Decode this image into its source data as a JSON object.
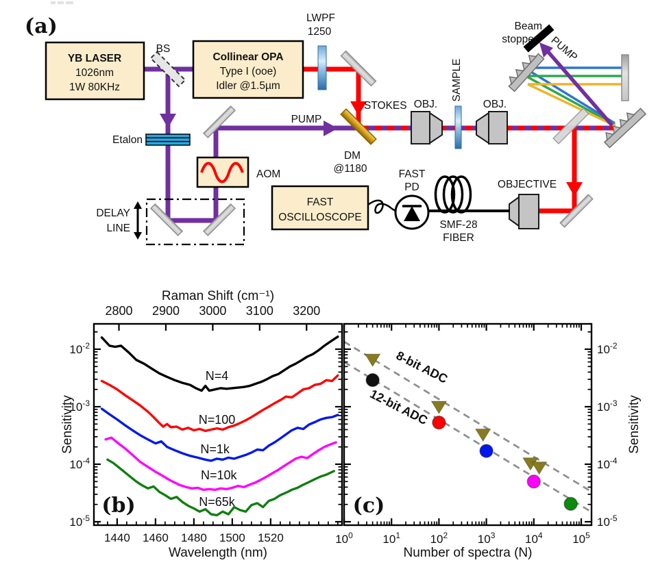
{
  "figure": {
    "panel_a": "(a)",
    "panel_b": "(b)",
    "panel_c": "(c)"
  },
  "diagram": {
    "labels": {
      "laser_l1": "YB LASER",
      "laser_l2": "1026nm",
      "laser_l3": "1W 80KHz",
      "bs": "BS",
      "opa_l1": "Collinear OPA",
      "opa_l2": "Type I (ooe)",
      "opa_l3": "Idler @1.5µm",
      "lwpf_l1": "LWPF",
      "lwpf_l2": "1250",
      "etalon": "Etalon",
      "aom": "AOM",
      "delay_l1": "DELAY",
      "delay_l2": "LINE",
      "pump_main": "PUMP",
      "stokes": "STOKES",
      "dm_l1": "DM",
      "dm_l2": "@1180",
      "obj_left": "OBJ.",
      "obj_right": "OBJ.",
      "sample": "SAMPLE",
      "beam_stopper_l1": "Beam",
      "beam_stopper_l2": "stopper",
      "pump_diag": "PUMP",
      "osc_l1": "FAST",
      "osc_l2": "OSCILLOSCOPE",
      "pd_l1": "FAST",
      "pd_l2": "PD",
      "fiber_l1": "SMF-28",
      "fiber_l2": "FIBER",
      "objective": "OBJECTIVE"
    },
    "colors": {
      "pump_beam": "#7030A0",
      "stokes_beam": "#FF0000",
      "box_fill": "#FBEDCB",
      "optic_gray": "#CFCFCF",
      "gold_dm": "#C89000",
      "blue_element": "#4A90C8",
      "beam_blue": "#2E75D4",
      "beam_green": "#2EA84E",
      "beam_yellow": "#F0B428"
    }
  },
  "chart_data": [
    {
      "type": "line",
      "panel": "b",
      "panel_label": "(b)",
      "xlabel": "Wavelength (nm)",
      "x2label": "Raman Shift (cm⁻¹)",
      "ylabel": "Sensitivity",
      "yscale": "log",
      "xlim": [
        1428,
        1557
      ],
      "x2lim": [
        2747,
        3276
      ],
      "ylim": [
        8.7e-06,
        0.0276
      ],
      "xticks": [
        1440,
        1460,
        1480,
        1500,
        1520
      ],
      "x2ticks": [
        2800,
        2900,
        3000,
        3100,
        3200
      ],
      "ytick_exponents": [
        -2,
        -3,
        -4,
        -5
      ],
      "grid": false,
      "series": [
        {
          "name": "N=4",
          "color": "#000000",
          "points": [
            [
              1432,
              0.016
            ],
            [
              1436,
              0.0115
            ],
            [
              1439,
              0.011
            ],
            [
              1442,
              0.0115
            ],
            [
              1446,
              0.0088
            ],
            [
              1450,
              0.0065
            ],
            [
              1454,
              0.0056
            ],
            [
              1458,
              0.0046
            ],
            [
              1462,
              0.0038
            ],
            [
              1466,
              0.0033
            ],
            [
              1470,
              0.0029
            ],
            [
              1474,
              0.0026
            ],
            [
              1478,
              0.0024
            ],
            [
              1481,
              0.0021
            ],
            [
              1484,
              0.0019
            ],
            [
              1486,
              0.0023
            ],
            [
              1488,
              0.0019
            ],
            [
              1491,
              0.002
            ],
            [
              1494,
              0.0021
            ],
            [
              1497,
              0.00205
            ],
            [
              1500,
              0.0021
            ],
            [
              1503,
              0.00215
            ],
            [
              1506,
              0.0022
            ],
            [
              1509,
              0.0023
            ],
            [
              1512,
              0.0025
            ],
            [
              1515,
              0.0027
            ],
            [
              1518,
              0.003
            ],
            [
              1521,
              0.0034
            ],
            [
              1524,
              0.0037
            ],
            [
              1527,
              0.0043
            ],
            [
              1530,
              0.005
            ],
            [
              1533,
              0.0056
            ],
            [
              1536,
              0.0064
            ],
            [
              1539,
              0.0074
            ],
            [
              1542,
              0.0082
            ],
            [
              1545,
              0.0096
            ],
            [
              1548,
              0.0115
            ],
            [
              1551,
              0.0135
            ],
            [
              1555,
              0.0165
            ]
          ]
        },
        {
          "name": "N=100",
          "color": "#FF0000",
          "points": [
            [
              1432,
              0.0028
            ],
            [
              1436,
              0.0024
            ],
            [
              1440,
              0.002
            ],
            [
              1444,
              0.0016
            ],
            [
              1448,
              0.0013
            ],
            [
              1452,
              0.00105
            ],
            [
              1456,
              0.00082
            ],
            [
              1459,
              0.00066
            ],
            [
              1462,
              0.00052
            ],
            [
              1464,
              0.00045
            ],
            [
              1466,
              0.0005
            ],
            [
              1468,
              0.00044
            ],
            [
              1471,
              0.00045
            ],
            [
              1474,
              0.0004
            ],
            [
              1477,
              0.00043
            ],
            [
              1480,
              0.00039
            ],
            [
              1483,
              0.00041
            ],
            [
              1486,
              0.00038
            ],
            [
              1489,
              0.0004
            ],
            [
              1492,
              0.00042
            ],
            [
              1495,
              0.0004
            ],
            [
              1498,
              0.00044
            ],
            [
              1501,
              0.00047
            ],
            [
              1504,
              0.00052
            ],
            [
              1507,
              0.00058
            ],
            [
              1510,
              0.00066
            ],
            [
              1513,
              0.00076
            ],
            [
              1516,
              0.00088
            ],
            [
              1519,
              0.001
            ],
            [
              1522,
              0.00115
            ],
            [
              1525,
              0.0013
            ],
            [
              1528,
              0.0015
            ],
            [
              1531,
              0.00145
            ],
            [
              1534,
              0.0017
            ],
            [
              1537,
              0.002
            ],
            [
              1540,
              0.0021
            ],
            [
              1543,
              0.0024
            ],
            [
              1546,
              0.0025
            ],
            [
              1549,
              0.0029
            ],
            [
              1552,
              0.0028
            ],
            [
              1555,
              0.0035
            ]
          ]
        },
        {
          "name": "N=1k",
          "color": "#0018EE",
          "points": [
            [
              1432,
              0.00092
            ],
            [
              1436,
              0.00074
            ],
            [
              1440,
              0.0006
            ],
            [
              1444,
              0.00048
            ],
            [
              1448,
              0.00039
            ],
            [
              1452,
              0.00032
            ],
            [
              1456,
              0.00027
            ],
            [
              1460,
              0.00023
            ],
            [
              1463,
              0.00025
            ],
            [
              1466,
              0.0002
            ],
            [
              1470,
              0.000175
            ],
            [
              1474,
              0.000155
            ],
            [
              1478,
              0.00014
            ],
            [
              1482,
              0.00013
            ],
            [
              1486,
              0.00012
            ],
            [
              1489,
              0.000115
            ],
            [
              1492,
              0.000125
            ],
            [
              1495,
              0.00012
            ],
            [
              1498,
              0.00013
            ],
            [
              1501,
              0.000125
            ],
            [
              1504,
              0.000135
            ],
            [
              1507,
              0.000145
            ],
            [
              1510,
              0.00016
            ],
            [
              1513,
              0.00018
            ],
            [
              1516,
              0.000175
            ],
            [
              1519,
              0.00021
            ],
            [
              1522,
              0.00024
            ],
            [
              1525,
              0.00028
            ],
            [
              1528,
              0.00033
            ],
            [
              1531,
              0.00039
            ],
            [
              1534,
              0.00043
            ],
            [
              1537,
              0.00041
            ],
            [
              1540,
              0.00049
            ],
            [
              1543,
              0.00054
            ],
            [
              1546,
              0.0006
            ],
            [
              1549,
              0.00064
            ],
            [
              1552,
              0.00066
            ],
            [
              1555,
              0.00072
            ]
          ]
        },
        {
          "name": "N=10k",
          "color": "#FF00FF",
          "points": [
            [
              1434,
              0.00027
            ],
            [
              1437,
              0.00029
            ],
            [
              1440,
              0.00024
            ],
            [
              1444,
              0.00019
            ],
            [
              1448,
              0.000145
            ],
            [
              1452,
              0.00011
            ],
            [
              1456,
              9e-05
            ],
            [
              1460,
              7.4e-05
            ],
            [
              1464,
              6.2e-05
            ],
            [
              1467,
              5.4e-05
            ],
            [
              1470,
              4.8e-05
            ],
            [
              1473,
              4.3e-05
            ],
            [
              1476,
              4e-05
            ],
            [
              1479,
              3.8e-05
            ],
            [
              1482,
              3.9e-05
            ],
            [
              1485,
              3.6e-05
            ],
            [
              1488,
              3.7e-05
            ],
            [
              1491,
              3.6e-05
            ],
            [
              1494,
              3.8e-05
            ],
            [
              1497,
              3.7e-05
            ],
            [
              1500,
              3.9e-05
            ],
            [
              1503,
              4.2e-05
            ],
            [
              1506,
              4e-05
            ],
            [
              1509,
              4.4e-05
            ],
            [
              1512,
              4.8e-05
            ],
            [
              1515,
              5.4e-05
            ],
            [
              1518,
              6.1e-05
            ],
            [
              1521,
              7e-05
            ],
            [
              1524,
              8e-05
            ],
            [
              1527,
              9.3e-05
            ],
            [
              1530,
              0.000108
            ],
            [
              1533,
              0.000125
            ],
            [
              1536,
              0.000135
            ],
            [
              1539,
              0.000128
            ],
            [
              1542,
              0.00015
            ],
            [
              1545,
              0.000175
            ],
            [
              1548,
              0.0002
            ],
            [
              1551,
              0.00022
            ],
            [
              1554,
              0.00024
            ]
          ]
        },
        {
          "name": "N=65k",
          "color": "#0F7F0F",
          "points": [
            [
              1435,
              0.00012
            ],
            [
              1438,
              0.000105
            ],
            [
              1442,
              8.2e-05
            ],
            [
              1446,
              6.4e-05
            ],
            [
              1450,
              5e-05
            ],
            [
              1453,
              4.3e-05
            ],
            [
              1456,
              3.8e-05
            ],
            [
              1459,
              4.1e-05
            ],
            [
              1462,
              3.3e-05
            ],
            [
              1465,
              2.9e-05
            ],
            [
              1468,
              2.5e-05
            ],
            [
              1471,
              2.7e-05
            ],
            [
              1474,
              2.2e-05
            ],
            [
              1477,
              1.9e-05
            ],
            [
              1480,
              1.7e-05
            ],
            [
              1483,
              1.5e-05
            ],
            [
              1486,
              1.65e-05
            ],
            [
              1489,
              1.35e-05
            ],
            [
              1492,
              1.3e-05
            ],
            [
              1495,
              1.5e-05
            ],
            [
              1498,
              1.35e-05
            ],
            [
              1501,
              1.8e-05
            ],
            [
              1504,
              1.6e-05
            ],
            [
              1507,
              1.5e-05
            ],
            [
              1510,
              1.95e-05
            ],
            [
              1513,
              2.1e-05
            ],
            [
              1516,
              1.8e-05
            ],
            [
              1519,
              2.3e-05
            ],
            [
              1522,
              2.5e-05
            ],
            [
              1525,
              2.9e-05
            ],
            [
              1528,
              3.2e-05
            ],
            [
              1531,
              3.6e-05
            ],
            [
              1534,
              3.9e-05
            ],
            [
              1537,
              4.4e-05
            ],
            [
              1540,
              4.9e-05
            ],
            [
              1543,
              5.5e-05
            ],
            [
              1546,
              6.1e-05
            ],
            [
              1549,
              6.6e-05
            ],
            [
              1553,
              7.6e-05
            ]
          ]
        }
      ],
      "annotations": [
        {
          "text": "N=4",
          "x": 1492,
          "y": 0.0029
        },
        {
          "text": "N=100",
          "x": 1492,
          "y": 0.000505
        },
        {
          "text": "N=1k",
          "x": 1491,
          "y": 0.000155
        },
        {
          "text": "N=10k",
          "x": 1493,
          "y": 5.5e-05
        },
        {
          "text": "N=65k",
          "x": 1492,
          "y": 1.87e-05
        }
      ]
    },
    {
      "type": "scatter",
      "panel": "c",
      "panel_label": "(c)",
      "xlabel": "Number of spectra (N)",
      "ylabel": "Sensitivity",
      "xscale": "log",
      "yscale": "log",
      "xlim": [
        1,
        165000
      ],
      "ylim": [
        8.7e-06,
        0.0276
      ],
      "xtick_exponents": [
        0,
        1,
        2,
        3,
        4,
        5
      ],
      "ytick_exponents": [
        -2,
        -3,
        -4,
        -5
      ],
      "grid": false,
      "series": [
        {
          "name": "8-bit ADC",
          "marker": "triangle-down",
          "points": [
            {
              "N": 4,
              "s": 0.0066,
              "color": "#877B21"
            },
            {
              "N": 100,
              "s": 0.001,
              "color": "#877B21"
            },
            {
              "N": 850,
              "s": 0.00033,
              "color": "#877B21"
            },
            {
              "N": 8500,
              "s": 0.000104,
              "color": "#877B21"
            },
            {
              "N": 13000,
              "s": 8.8e-05,
              "color": "#877B21"
            }
          ]
        },
        {
          "name": "12-bit ADC",
          "marker": "circle",
          "points": [
            {
              "N": 4,
              "s": 0.0029,
              "color": "#111111"
            },
            {
              "N": 100,
              "s": 0.00053,
              "color": "#FF0000"
            },
            {
              "N": 1000,
              "s": 0.00017,
              "color": "#0018EE"
            },
            {
              "N": 10000,
              "s": 5e-05,
              "color": "#FF00FF"
            },
            {
              "N": 60000,
              "s": 2.05e-05,
              "color": "#0E8A0E"
            }
          ]
        }
      ],
      "fit_lines": [
        {
          "label": "8-bit ADC",
          "A": 0.0135,
          "slope": -0.5,
          "color": "#909090"
        },
        {
          "label": "12-bit ADC",
          "A": 0.006,
          "slope": -0.5,
          "color": "#909090"
        }
      ],
      "annotations": [
        {
          "text": "8-bit ADC",
          "N": 40,
          "s": 0.0042,
          "angle": 27
        },
        {
          "text": "12-bit ADC",
          "N": 13,
          "s": 0.00085,
          "angle": 27
        }
      ]
    }
  ]
}
